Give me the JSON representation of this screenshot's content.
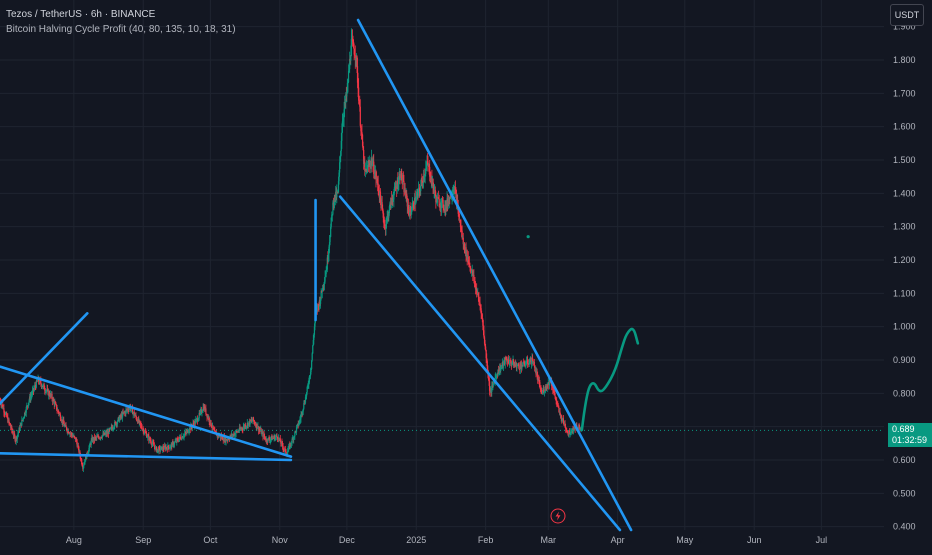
{
  "header": {
    "symbol_line": "Tezos / TetherUS · 6h · BINANCE",
    "indicator_line": "Bitcoin Halving Cycle Profit (40, 80, 135, 10, 18, 31)"
  },
  "currency_button": "USDT",
  "last_price": {
    "value": "0.689",
    "countdown": "01:32:59"
  },
  "event_icon": "lightning-icon",
  "colors": {
    "background": "#131722",
    "grid": "#1f2430",
    "up_candle": "#089981",
    "down_candle": "#f23645",
    "trendline": "#2196f3",
    "projection": "#089981",
    "price_line": "#089981",
    "axis_text": "#b2b5be"
  },
  "chart_data": {
    "type": "candlestick",
    "title": "Tezos / TetherUS · 6h · BINANCE",
    "xlabel": "",
    "ylabel": "",
    "y_axis_position": "right",
    "grid": true,
    "ylim": [
      0.39,
      1.98
    ],
    "xlim": [
      "2024-06-29",
      "2025-07-29"
    ],
    "y_ticks": [
      "0.400",
      "0.500",
      "0.600",
      "0.700",
      "0.800",
      "0.900",
      "1.000",
      "1.100",
      "1.200",
      "1.300",
      "1.400",
      "1.500",
      "1.600",
      "1.700",
      "1.800",
      "1.900"
    ],
    "x_ticks": [
      {
        "label": "Aug",
        "date": "2024-08-01"
      },
      {
        "label": "Sep",
        "date": "2024-09-01"
      },
      {
        "label": "Oct",
        "date": "2024-10-01"
      },
      {
        "label": "Nov",
        "date": "2024-11-01"
      },
      {
        "label": "Dec",
        "date": "2024-12-01"
      },
      {
        "label": "2025",
        "date": "2025-01-01"
      },
      {
        "label": "Feb",
        "date": "2025-02-01"
      },
      {
        "label": "Mar",
        "date": "2025-03-01"
      },
      {
        "label": "Apr",
        "date": "2025-04-01"
      },
      {
        "label": "May",
        "date": "2025-05-01"
      },
      {
        "label": "Jun",
        "date": "2025-06-01"
      },
      {
        "label": "Jul",
        "date": "2025-07-01"
      }
    ],
    "price_path": [
      [
        "2024-06-29",
        0.78
      ],
      [
        "2024-07-06",
        0.66
      ],
      [
        "2024-07-12",
        0.78
      ],
      [
        "2024-07-16",
        0.84
      ],
      [
        "2024-07-22",
        0.79
      ],
      [
        "2024-07-28",
        0.7
      ],
      [
        "2024-08-02",
        0.66
      ],
      [
        "2024-08-05",
        0.58
      ],
      [
        "2024-08-09",
        0.66
      ],
      [
        "2024-08-16",
        0.68
      ],
      [
        "2024-08-22",
        0.73
      ],
      [
        "2024-08-26",
        0.76
      ],
      [
        "2024-09-01",
        0.69
      ],
      [
        "2024-09-07",
        0.63
      ],
      [
        "2024-09-13",
        0.64
      ],
      [
        "2024-09-20",
        0.68
      ],
      [
        "2024-09-25",
        0.72
      ],
      [
        "2024-09-28",
        0.76
      ],
      [
        "2024-10-03",
        0.68
      ],
      [
        "2024-10-08",
        0.66
      ],
      [
        "2024-10-14",
        0.69
      ],
      [
        "2024-10-20",
        0.72
      ],
      [
        "2024-10-26",
        0.66
      ],
      [
        "2024-10-31",
        0.67
      ],
      [
        "2024-11-04",
        0.62
      ],
      [
        "2024-11-06",
        0.65
      ],
      [
        "2024-11-10",
        0.72
      ],
      [
        "2024-11-13",
        0.8
      ],
      [
        "2024-11-15",
        0.88
      ],
      [
        "2024-11-17",
        1.04
      ],
      [
        "2024-11-19",
        1.08
      ],
      [
        "2024-11-22",
        1.18
      ],
      [
        "2024-11-25",
        1.38
      ],
      [
        "2024-11-27",
        1.4
      ],
      [
        "2024-11-29",
        1.62
      ],
      [
        "2024-12-01",
        1.7
      ],
      [
        "2024-12-03",
        1.85
      ],
      [
        "2024-12-05",
        1.82
      ],
      [
        "2024-12-07",
        1.62
      ],
      [
        "2024-12-09",
        1.46
      ],
      [
        "2024-12-12",
        1.5
      ],
      [
        "2024-12-15",
        1.42
      ],
      [
        "2024-12-18",
        1.3
      ],
      [
        "2024-12-21",
        1.38
      ],
      [
        "2024-12-25",
        1.46
      ],
      [
        "2024-12-29",
        1.34
      ],
      [
        "2025-01-02",
        1.4
      ],
      [
        "2025-01-06",
        1.49
      ],
      [
        "2025-01-10",
        1.38
      ],
      [
        "2025-01-14",
        1.36
      ],
      [
        "2025-01-18",
        1.42
      ],
      [
        "2025-01-22",
        1.25
      ],
      [
        "2025-01-26",
        1.16
      ],
      [
        "2025-01-30",
        1.05
      ],
      [
        "2025-02-03",
        0.8
      ],
      [
        "2025-02-06",
        0.86
      ],
      [
        "2025-02-10",
        0.9
      ],
      [
        "2025-02-16",
        0.88
      ],
      [
        "2025-02-22",
        0.9
      ],
      [
        "2025-02-26",
        0.8
      ],
      [
        "2025-03-02",
        0.84
      ],
      [
        "2025-03-06",
        0.74
      ],
      [
        "2025-03-10",
        0.68
      ],
      [
        "2025-03-13",
        0.7
      ],
      [
        "2025-03-16",
        0.689
      ]
    ],
    "current_price": 0.689,
    "annotations": {
      "trendlines": [
        {
          "from": [
            "2024-06-29",
            0.62
          ],
          "to": [
            "2024-11-06",
            0.6
          ]
        },
        {
          "from": [
            "2024-06-29",
            0.88
          ],
          "to": [
            "2024-11-06",
            0.61
          ]
        },
        {
          "from": [
            "2024-06-29",
            0.77
          ],
          "to": [
            "2024-08-07",
            1.04
          ]
        },
        {
          "from": [
            "2024-11-17",
            1.38
          ],
          "to": [
            "2024-11-17",
            1.02
          ]
        },
        {
          "from": [
            "2024-12-06",
            1.92
          ],
          "to": [
            "2025-04-07",
            0.39
          ]
        },
        {
          "from": [
            "2024-11-28",
            1.39
          ],
          "to": [
            "2025-04-02",
            0.39
          ]
        }
      ],
      "projection_path": [
        [
          "2025-03-16",
          0.69
        ],
        [
          "2025-03-18",
          0.8
        ],
        [
          "2025-03-21",
          0.84
        ],
        [
          "2025-03-24",
          0.8
        ],
        [
          "2025-03-27",
          0.82
        ],
        [
          "2025-03-31",
          0.87
        ],
        [
          "2025-04-03",
          0.94
        ],
        [
          "2025-04-05",
          0.98
        ],
        [
          "2025-04-08",
          1.0
        ],
        [
          "2025-04-10",
          0.95
        ]
      ],
      "marker_points": [
        [
          "2025-02-20",
          1.27
        ]
      ]
    }
  }
}
